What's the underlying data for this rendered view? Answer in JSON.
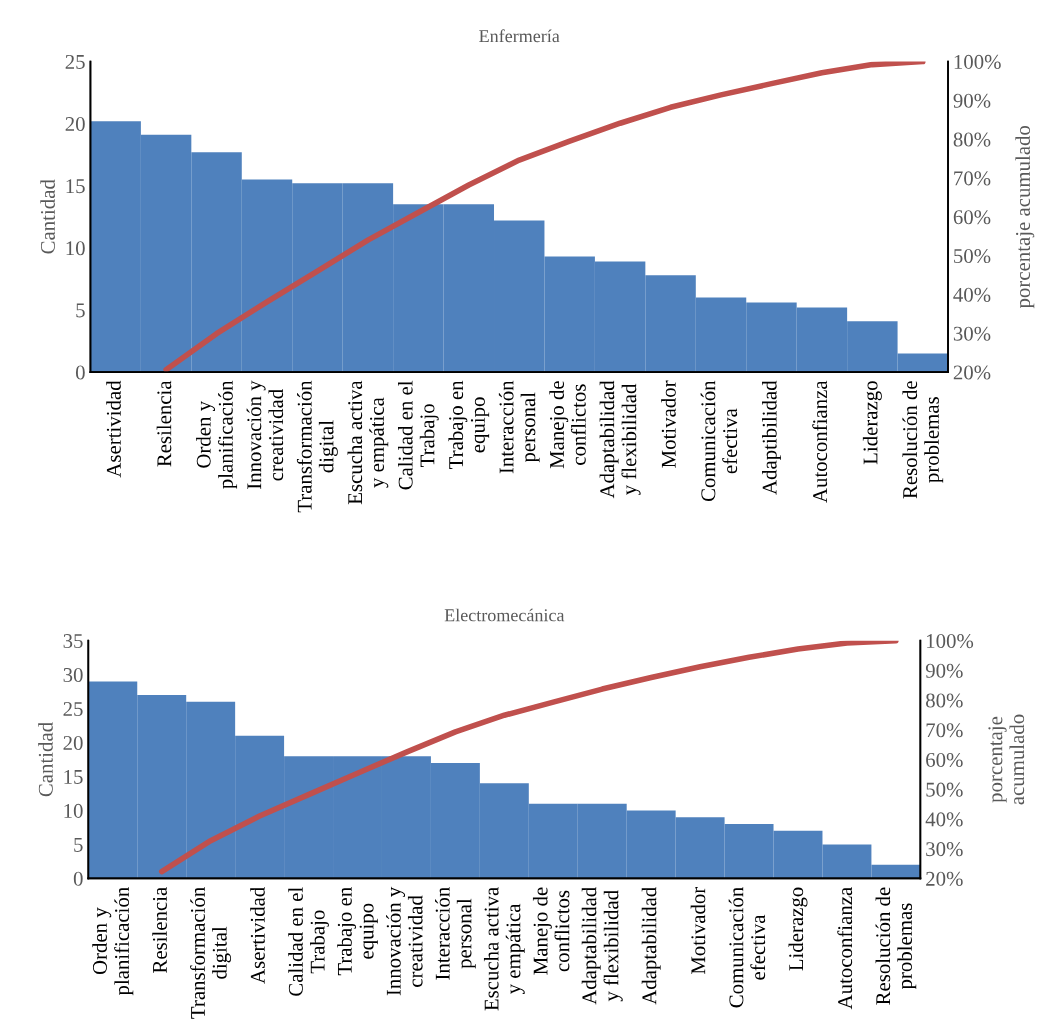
{
  "chart_data": [
    {
      "type": "bar",
      "title": "Enfermería",
      "ylabel": "Cantidad",
      "y2label": "porcentaje acumulado",
      "categories": [
        "Asertividad",
        "Resilencia",
        "Orden y\nplanificación",
        "Innovación y\ncreatividad",
        "Transformación\ndigital",
        "Escucha activa\ny empática",
        "Calidad en el\nTrabajo",
        "Trabajo en\nequipo",
        "Interacción\npersonal",
        "Manejo de\nconflictos",
        "Adaptabilidad\ny flexibilidad",
        "Motivador",
        "Comunicación\nefectiva",
        "Adaptibilidad",
        "Autoconfianza",
        "Liderazgo",
        "Resolución de\nproblemas"
      ],
      "series": [
        {
          "color": "#4f81bd",
          "values": [
            20.2,
            19.1,
            17.7,
            15.5,
            15.2,
            15.2,
            13.5,
            13.5,
            12.2,
            9.3,
            8.9,
            7.8,
            6.0,
            5.6,
            5.2,
            4.1,
            1.5
          ]
        },
        {
          "type": "line",
          "axis": "y2",
          "color": "#c0504d",
          "values": [
            null,
            20.6,
            29.9,
            38.1,
            46.0,
            54.0,
            61.1,
            68.2,
            74.6,
            79.5,
            84.1,
            88.2,
            91.4,
            94.3,
            97.1,
            99.2,
            100
          ]
        }
      ],
      "ylim": [
        0,
        25
      ],
      "yticks": [
        0,
        5,
        10,
        15,
        20,
        25
      ],
      "y2lim": [
        20,
        100
      ],
      "y2ticks": [
        {
          "value": 20,
          "label": "20%"
        },
        {
          "value": 30,
          "label": "30%"
        },
        {
          "value": 40,
          "label": "40%"
        },
        {
          "value": 50,
          "label": "50%"
        },
        {
          "value": 60,
          "label": "60%"
        },
        {
          "value": 70,
          "label": "70%"
        },
        {
          "value": 80,
          "label": "80%"
        },
        {
          "value": 90,
          "label": "90%"
        },
        {
          "value": 100,
          "label": "100%"
        }
      ],
      "grid": false,
      "legend": false
    },
    {
      "type": "bar",
      "title": "Electromecánica",
      "ylabel": "Cantidad",
      "y2label": "porcentaje\nacumulado",
      "categories": [
        "Orden y\nplanificación",
        "Resilencia",
        "Transformación\ndigital",
        "Asertividad",
        "Calidad en el\nTrabajo",
        "Trabajo en\nequipo",
        "Innovación y\ncreatividad",
        "Interacción\npersonal",
        "Escucha activa\ny empática",
        "Manejo de\nconflictos",
        "Adaptabilidad\ny flexibilidad",
        "Adaptabilidad",
        "Motivador",
        "Comunicación\nefectiva",
        "Liderazgo",
        "Autoconfianza",
        "Resolución de\nproblemas"
      ],
      "series": [
        {
          "color": "#4f81bd",
          "values": [
            29,
            27,
            26,
            21,
            18,
            18,
            18,
            17,
            14,
            11,
            11,
            10,
            9,
            8,
            7,
            5,
            2
          ]
        },
        {
          "type": "line",
          "axis": "y2",
          "color": "#c0504d",
          "values": [
            null,
            22.3,
            32.7,
            41.0,
            48.2,
            55.4,
            62.5,
            69.3,
            74.9,
            79.3,
            83.7,
            87.6,
            91.2,
            94.4,
            97.2,
            99.2,
            100
          ]
        }
      ],
      "ylim": [
        0,
        35
      ],
      "yticks": [
        0,
        5,
        10,
        15,
        20,
        25,
        30,
        35
      ],
      "y2lim": [
        20,
        100
      ],
      "y2ticks": [
        {
          "value": 20,
          "label": "20%"
        },
        {
          "value": 30,
          "label": "30%"
        },
        {
          "value": 40,
          "label": "40%"
        },
        {
          "value": 50,
          "label": "50%"
        },
        {
          "value": 60,
          "label": "60%"
        },
        {
          "value": 70,
          "label": "70%"
        },
        {
          "value": 80,
          "label": "80%"
        },
        {
          "value": 90,
          "label": "90%"
        },
        {
          "value": 100,
          "label": "100%"
        }
      ],
      "grid": false,
      "legend": false
    }
  ]
}
